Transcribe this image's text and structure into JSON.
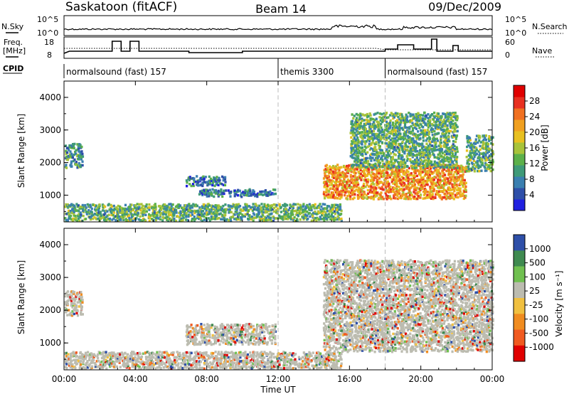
{
  "header": {
    "station": "Saskatoon (fitACF)",
    "beam": "Beam 14",
    "date": "09/Dec/2009"
  },
  "top_panels": {
    "nsky_label": "N.Sky",
    "nsky_ticks": [
      "10^5",
      "10^0"
    ],
    "nsearch_label": "N.Search",
    "nsearch_ticks": [
      "10^5",
      "10^0"
    ],
    "freq_label_1": "Freq.",
    "freq_label_2": "[MHz]",
    "freq_ticks": [
      "18",
      "8"
    ],
    "nave_label": "Nave",
    "nave_ticks": [
      "60",
      "0"
    ],
    "cpid_label": "CPID",
    "cpid_segments": [
      {
        "label": "normalsound (fast) 157",
        "start_hour": 0
      },
      {
        "label": "themis 3300",
        "start_hour": 12
      },
      {
        "label": "normalsound (fast) 157",
        "start_hour": 18
      }
    ]
  },
  "chart_data": [
    {
      "type": "heatmap",
      "title": "Power",
      "xlabel": "",
      "ylabel": "Slant Range [km]",
      "x_range_hours": [
        0,
        24
      ],
      "ylim": [
        180,
        4500
      ],
      "y_ticks": [
        "4000",
        "3000",
        "2000",
        "1000"
      ],
      "colorbar": {
        "label": "Power [dB]",
        "ticks": [
          "28",
          "24",
          "20",
          "16",
          "12",
          "8",
          "4"
        ],
        "colors": [
          "#2020e0",
          "#2e4fa8",
          "#3a7fb0",
          "#3f9a78",
          "#5cb04a",
          "#a8c33a",
          "#e8c020",
          "#f0a020",
          "#f07020",
          "#e83020",
          "#e00000"
        ]
      },
      "echo_regions": [
        {
          "t_start": 0.0,
          "t_end": 1.0,
          "r_min": 1800,
          "r_max": 2550,
          "power_db": 8
        },
        {
          "t_start": 0.0,
          "t_end": 15.5,
          "r_min": 180,
          "r_max": 700,
          "power_db": 10
        },
        {
          "t_start": 6.8,
          "t_end": 9.0,
          "r_min": 1250,
          "r_max": 1550,
          "power_db": 6
        },
        {
          "t_start": 7.5,
          "t_end": 11.8,
          "r_min": 920,
          "r_max": 1150,
          "power_db": 6
        },
        {
          "t_start": 14.5,
          "t_end": 22.5,
          "r_min": 850,
          "r_max": 1900,
          "power_db": 20
        },
        {
          "t_start": 16.0,
          "t_end": 22.0,
          "r_min": 1800,
          "r_max": 3500,
          "power_db": 10
        },
        {
          "t_start": 22.5,
          "t_end": 24.0,
          "r_min": 1700,
          "r_max": 2800,
          "power_db": 10
        }
      ]
    },
    {
      "type": "heatmap",
      "title": "Velocity",
      "xlabel": "Time UT",
      "ylabel": "Slant Range [km]",
      "x_range_hours": [
        0,
        24
      ],
      "x_ticks": [
        "00:00",
        "04:00",
        "08:00",
        "12:00",
        "16:00",
        "20:00",
        "00:00"
      ],
      "ylim": [
        180,
        4500
      ],
      "y_ticks": [
        "4000",
        "3000",
        "2000",
        "1000"
      ],
      "colorbar": {
        "label": "Velocity [m s⁻¹]",
        "ticks": [
          "1000",
          "500",
          "100",
          "25",
          "-25",
          "-100",
          "-500",
          "-1000"
        ],
        "colors": [
          "#2e4fa8",
          "#3f8a50",
          "#70c050",
          "#bcbcb0",
          "#f0c040",
          "#f08c20",
          "#f05a20",
          "#e00000"
        ]
      },
      "echo_regions": [
        {
          "t_start": 0.0,
          "t_end": 1.0,
          "r_min": 1800,
          "r_max": 2550,
          "velocity": 0
        },
        {
          "t_start": 0.0,
          "t_end": 15.5,
          "r_min": 180,
          "r_max": 700,
          "velocity": 50
        },
        {
          "t_start": 6.8,
          "t_end": 11.8,
          "r_min": 920,
          "r_max": 1550,
          "velocity": 0
        },
        {
          "t_start": 14.5,
          "t_end": 24.0,
          "r_min": 700,
          "r_max": 3500,
          "velocity": 0
        }
      ]
    }
  ]
}
